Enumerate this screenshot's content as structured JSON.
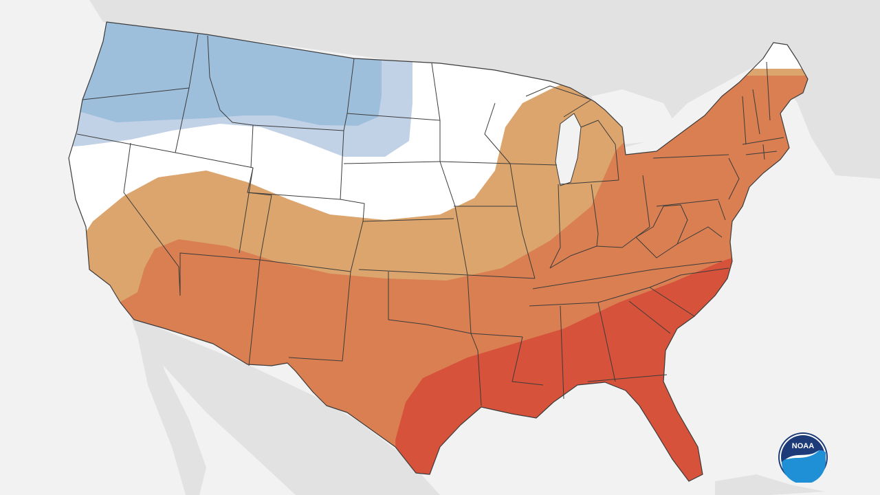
{
  "map": {
    "colors": {
      "ocean": "#f2f2f2",
      "land": "#e2e2e2",
      "below_likely": "#9dbfdc",
      "below_leaning": "#c2d2e6",
      "near_normal": "#ffffff",
      "above_leaning": "#dca56e",
      "above_likely": "#d97f52",
      "above_very_likely": "#d6523a",
      "borders": "#3b3b3b"
    }
  },
  "logo": {
    "text": "NOAA",
    "colors": {
      "navy": "#1d3b78",
      "blue": "#1f8fd6",
      "white": "#ffffff"
    }
  }
}
